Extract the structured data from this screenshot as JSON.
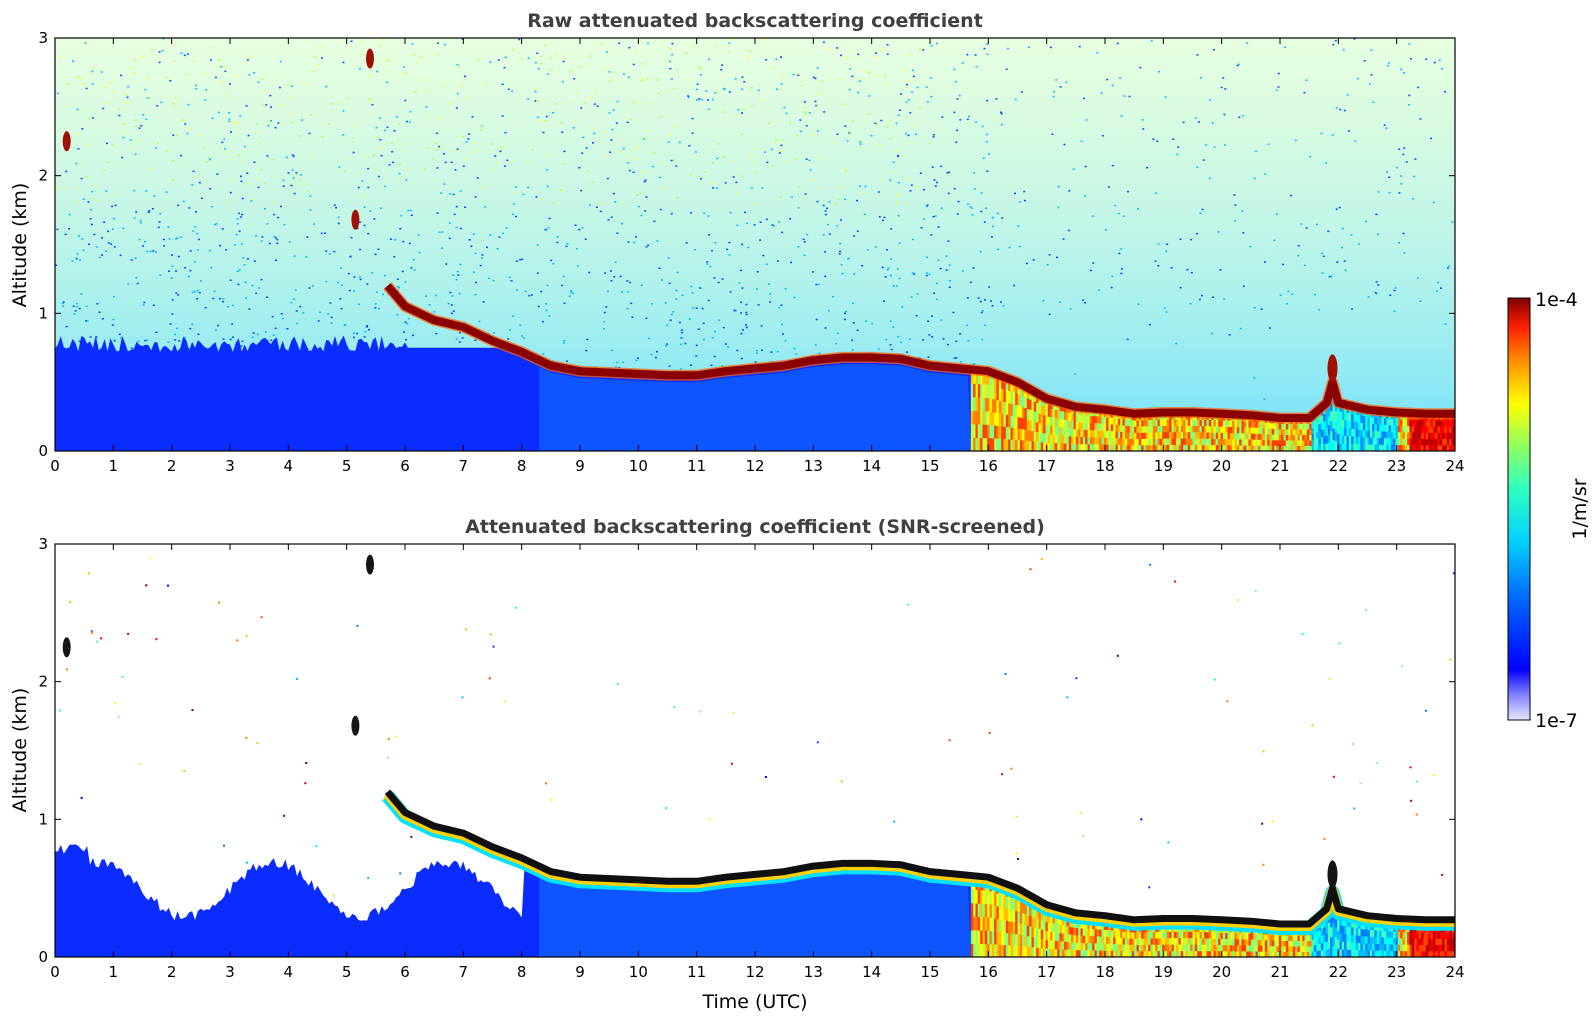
{
  "chart_data": [
    {
      "type": "heatmap",
      "title": "Raw attenuated backscattering coefficient",
      "xlabel": "",
      "ylabel": "Altitude (km)",
      "xlim": [
        0,
        24
      ],
      "ylim": [
        0,
        3
      ],
      "xticks": [
        "0",
        "1",
        "2",
        "3",
        "4",
        "5",
        "6",
        "7",
        "8",
        "9",
        "10",
        "11",
        "12",
        "13",
        "14",
        "15",
        "16",
        "17",
        "18",
        "19",
        "20",
        "21",
        "22",
        "23",
        "24"
      ],
      "yticks": [
        "0",
        "1",
        "2",
        "3"
      ],
      "layer_top_km": [
        [
          5.7,
          1.2
        ],
        [
          6.0,
          1.05
        ],
        [
          6.5,
          0.95
        ],
        [
          7.0,
          0.9
        ],
        [
          7.5,
          0.8
        ],
        [
          8.0,
          0.72
        ],
        [
          8.5,
          0.62
        ],
        [
          9.0,
          0.58
        ],
        [
          10.0,
          0.56
        ],
        [
          10.5,
          0.55
        ],
        [
          11.0,
          0.55
        ],
        [
          11.5,
          0.58
        ],
        [
          12.0,
          0.6
        ],
        [
          12.5,
          0.62
        ],
        [
          13.0,
          0.66
        ],
        [
          13.5,
          0.68
        ],
        [
          14.0,
          0.68
        ],
        [
          14.5,
          0.67
        ],
        [
          15.0,
          0.62
        ],
        [
          15.5,
          0.6
        ],
        [
          16.0,
          0.58
        ],
        [
          16.5,
          0.5
        ],
        [
          17.0,
          0.38
        ],
        [
          17.5,
          0.32
        ],
        [
          18.0,
          0.3
        ],
        [
          18.5,
          0.27
        ],
        [
          19.0,
          0.28
        ],
        [
          19.5,
          0.28
        ],
        [
          20.0,
          0.27
        ],
        [
          20.5,
          0.26
        ],
        [
          21.0,
          0.24
        ],
        [
          21.5,
          0.24
        ],
        [
          21.8,
          0.35
        ],
        [
          21.9,
          0.5
        ],
        [
          22.0,
          0.35
        ],
        [
          22.5,
          0.3
        ],
        [
          23.0,
          0.28
        ],
        [
          23.5,
          0.27
        ],
        [
          24.0,
          0.27
        ]
      ],
      "isolated_features": [
        {
          "t": 0.2,
          "z": 2.25,
          "note": "cloud"
        },
        {
          "t": 5.15,
          "z": 1.68,
          "note": "cloud"
        },
        {
          "t": 5.4,
          "z": 2.85,
          "note": "cloud"
        },
        {
          "t": 21.9,
          "z": 0.6,
          "note": "plume"
        }
      ]
    },
    {
      "type": "heatmap",
      "title": "Attenuated backscattering coefficient (SNR-screened)",
      "xlabel": "Time (UTC)",
      "ylabel": "Altitude (km)",
      "xlim": [
        0,
        24
      ],
      "ylim": [
        0,
        3
      ],
      "xticks": [
        "0",
        "1",
        "2",
        "3",
        "4",
        "5",
        "6",
        "7",
        "8",
        "9",
        "10",
        "11",
        "12",
        "13",
        "14",
        "15",
        "16",
        "17",
        "18",
        "19",
        "20",
        "21",
        "22",
        "23",
        "24"
      ],
      "yticks": [
        "0",
        "1",
        "2",
        "3"
      ]
    }
  ],
  "colorbar": {
    "max_label": "1e-4",
    "min_label": "1e-7",
    "unit_label": "1/m/sr",
    "scale": "log",
    "range": [
      1e-07,
      0.0001
    ]
  }
}
